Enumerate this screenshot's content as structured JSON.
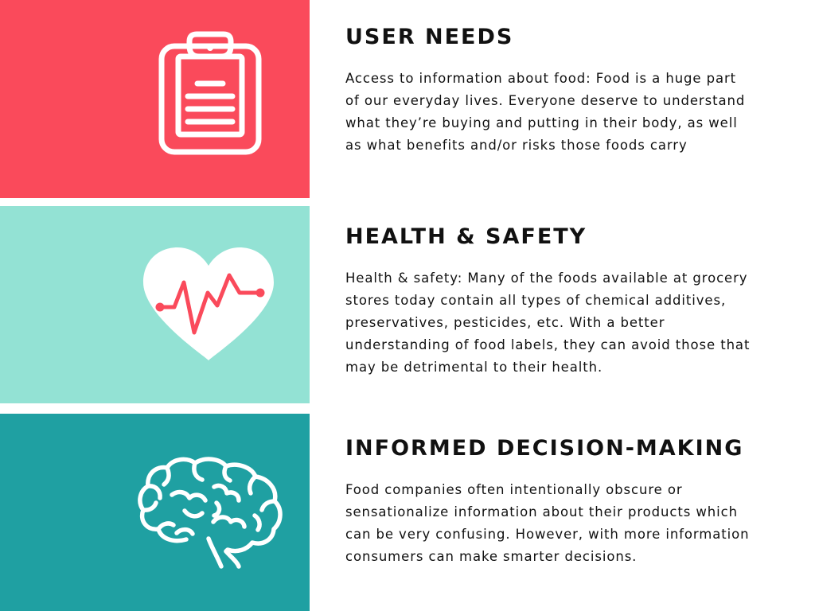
{
  "colors": {
    "panel_user_needs": "#fa4a5b",
    "panel_health": "#93e2d4",
    "panel_decision": "#1fa0a2",
    "heart_fill": "#ffffff",
    "heartbeat_line": "#fa4a5b",
    "icon_line": "#ffffff",
    "text": "#111111"
  },
  "sections": [
    {
      "heading": "USER NEEDS",
      "body": "Access to information about food: Food is a huge part of our everyday lives. Everyone deserve to understand what they’re buying and putting in their body, as well as what benefits and/or risks those foods carry",
      "icon": "clipboard-icon"
    },
    {
      "heading": "HEALTH & SAFETY",
      "body": "Health & safety: Many of the foods available at grocery stores today contain all types of chemical additives, preservatives, pesticides, etc. With a better understanding of food labels, they can avoid those that may be detrimental to their health.",
      "icon": "heartbeat-icon"
    },
    {
      "heading": "INFORMED DECISION-MAKING",
      "body": "Food companies often intentionally obscure or sensationalize information about their products which can be very confusing. However, with more information consumers can make smarter decisions.",
      "icon": "brain-icon"
    }
  ]
}
